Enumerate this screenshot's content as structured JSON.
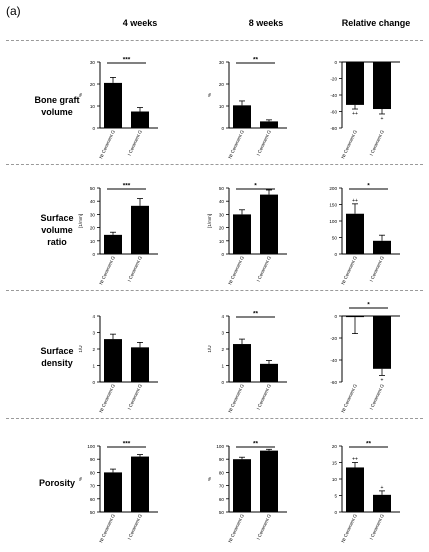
{
  "panel_label": "(a)",
  "columns": [
    "4 weeks",
    "8 weeks",
    "Relative change"
  ],
  "rows": [
    {
      "label_lines": [
        "Bone graft",
        "volume"
      ]
    },
    {
      "label_lines": [
        "Surface",
        "volume",
        "ratio"
      ]
    },
    {
      "label_lines": [
        "Surface",
        "density"
      ]
    },
    {
      "label_lines": [
        "Porosity"
      ]
    }
  ],
  "chart_data": [
    {
      "type": "bar",
      "row": 0,
      "col": 0,
      "categories": [
        "NI Cerament G",
        "I Cerament G"
      ],
      "values": [
        20.5,
        7.5
      ],
      "errors": [
        2.5,
        1.8
      ],
      "ylabel": "%",
      "ylim": [
        0,
        30
      ],
      "yticks": [
        0,
        10,
        20,
        30
      ],
      "sig": {
        "text": "***",
        "from": 0,
        "to": 1
      },
      "markers": [
        "",
        ""
      ]
    },
    {
      "type": "bar",
      "row": 0,
      "col": 1,
      "categories": [
        "NI Cerament G",
        "I Cerament G"
      ],
      "values": [
        10.3,
        3.0
      ],
      "errors": [
        2.0,
        0.7
      ],
      "ylabel": "%",
      "ylim": [
        0,
        30
      ],
      "yticks": [
        0,
        10,
        20,
        30
      ],
      "sig": {
        "text": "**",
        "from": 0,
        "to": 1
      },
      "markers": [
        "",
        ""
      ]
    },
    {
      "type": "bar",
      "row": 0,
      "col": 2,
      "categories": [
        "NI Cerament G",
        "I Cerament G"
      ],
      "values": [
        -52,
        -57
      ],
      "errors": [
        5,
        6
      ],
      "ylabel": "",
      "ylim": [
        -80,
        0
      ],
      "yticks": [
        0,
        -20,
        -40,
        -60,
        -80
      ],
      "sig": null,
      "markers": [
        "++",
        "+"
      ]
    },
    {
      "type": "bar",
      "row": 1,
      "col": 0,
      "categories": [
        "NI Cerament G",
        "I Cerament G"
      ],
      "values": [
        14.5,
        36.5
      ],
      "errors": [
        2.0,
        5.5
      ],
      "ylabel": "[1/mm]",
      "ylim": [
        0,
        50
      ],
      "yticks": [
        0,
        10,
        20,
        30,
        40,
        50
      ],
      "sig": {
        "text": "***",
        "from": 0,
        "to": 1
      },
      "markers": [
        "",
        ""
      ]
    },
    {
      "type": "bar",
      "row": 1,
      "col": 1,
      "categories": [
        "NI Cerament G",
        "I Cerament G"
      ],
      "values": [
        30,
        45
      ],
      "errors": [
        3.5,
        3.5
      ],
      "ylabel": "[1/mm]",
      "ylim": [
        0,
        50
      ],
      "yticks": [
        0,
        10,
        20,
        30,
        40,
        50
      ],
      "sig": {
        "text": "*",
        "from": 0,
        "to": 1
      },
      "markers": [
        "",
        ""
      ]
    },
    {
      "type": "bar",
      "row": 1,
      "col": 2,
      "categories": [
        "NI Cerament G",
        "I Cerament G"
      ],
      "values": [
        122,
        40
      ],
      "errors": [
        30,
        17
      ],
      "ylabel": "",
      "ylim": [
        0,
        200
      ],
      "yticks": [
        0,
        50,
        100,
        150,
        200
      ],
      "sig": {
        "text": "*",
        "from": 0,
        "to": 1
      },
      "markers": [
        "++",
        ""
      ]
    },
    {
      "type": "bar",
      "row": 2,
      "col": 0,
      "categories": [
        "NI Cerament G",
        "I Cerament G"
      ],
      "values": [
        2.6,
        2.1
      ],
      "errors": [
        0.3,
        0.3
      ],
      "ylabel": "1/U",
      "ylim": [
        0,
        4
      ],
      "yticks": [
        0,
        1,
        2,
        3,
        4
      ],
      "sig": null,
      "markers": [
        "",
        ""
      ]
    },
    {
      "type": "bar",
      "row": 2,
      "col": 1,
      "categories": [
        "NI Cerament G",
        "I Cerament G"
      ],
      "values": [
        2.3,
        1.1
      ],
      "errors": [
        0.3,
        0.2
      ],
      "ylabel": "1/U",
      "ylim": [
        0,
        4
      ],
      "yticks": [
        0,
        1,
        2,
        3,
        4
      ],
      "sig": {
        "text": "**",
        "from": 0,
        "to": 1
      },
      "markers": [
        "",
        ""
      ]
    },
    {
      "type": "bar",
      "row": 2,
      "col": 2,
      "categories": [
        "NI Cerament G",
        "I Cerament G"
      ],
      "values": [
        -1,
        -48
      ],
      "errors": [
        15,
        6
      ],
      "ylabel": "",
      "ylim": [
        -60,
        0
      ],
      "yticks": [
        0,
        -20,
        -40,
        -60
      ],
      "sig": {
        "text": "*",
        "from": 0,
        "to": 1
      },
      "markers": [
        "",
        "+"
      ]
    },
    {
      "type": "bar",
      "row": 3,
      "col": 0,
      "categories": [
        "NI Cerament G",
        "I Cerament G"
      ],
      "values": [
        80,
        92
      ],
      "errors": [
        2.5,
        1.5
      ],
      "ylabel": "%",
      "ylim": [
        50,
        100
      ],
      "yticks": [
        50,
        60,
        70,
        80,
        90,
        100
      ],
      "sig": {
        "text": "***",
        "from": 0,
        "to": 1
      },
      "markers": [
        "",
        ""
      ]
    },
    {
      "type": "bar",
      "row": 3,
      "col": 1,
      "categories": [
        "NI Cerament G",
        "I Cerament G"
      ],
      "values": [
        90,
        96.5
      ],
      "errors": [
        1.5,
        1.0
      ],
      "ylabel": "%",
      "ylim": [
        50,
        100
      ],
      "yticks": [
        50,
        60,
        70,
        80,
        90,
        100
      ],
      "sig": {
        "text": "**",
        "from": 0,
        "to": 1
      },
      "markers": [
        "",
        ""
      ]
    },
    {
      "type": "bar",
      "row": 3,
      "col": 2,
      "categories": [
        "NI Cerament G",
        "I Cerament G"
      ],
      "values": [
        13.5,
        5.2
      ],
      "errors": [
        1.5,
        1.2
      ],
      "ylabel": "",
      "ylim": [
        0,
        20
      ],
      "yticks": [
        0,
        5,
        10,
        15,
        20
      ],
      "sig": {
        "text": "**",
        "from": 0,
        "to": 1
      },
      "markers": [
        "++",
        "+"
      ]
    }
  ]
}
